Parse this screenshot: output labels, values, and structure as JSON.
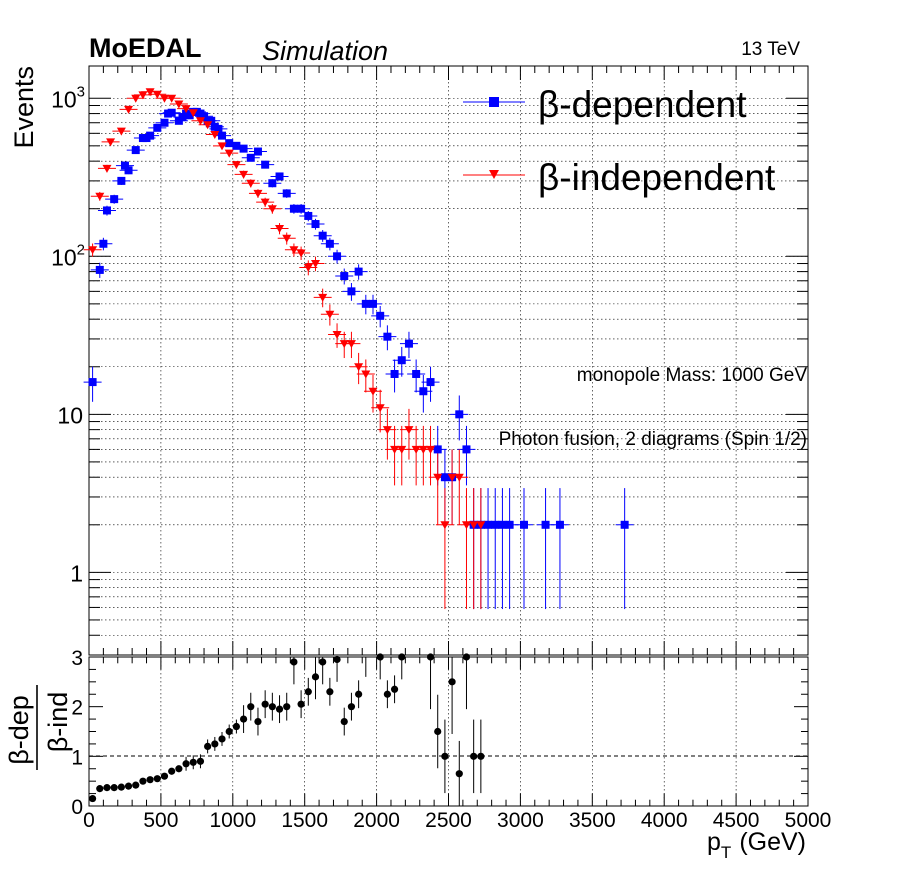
{
  "header": {
    "experiment": "MoEDAL",
    "status": "Simulation",
    "energy": "13 TeV"
  },
  "annotations": {
    "mass": "monopole Mass: 1000 GeV",
    "process": "Photon fusion, 2 diagrams (Spin 1/2)"
  },
  "colors": {
    "dependent": "#0000ff",
    "independent": "#ff0000",
    "ratio": "#000000"
  },
  "chart_data": [
    {
      "type": "scatter",
      "scale": "log",
      "ylabel": "Events",
      "xlim": [
        0,
        5000
      ],
      "ylim": [
        0.3,
        1600
      ],
      "grid": true,
      "legend_position": "top-right",
      "y_tick_labels": [
        {
          "value": 1,
          "label": "1"
        },
        {
          "value": 10,
          "label": "10"
        },
        {
          "value": 100,
          "label": "10",
          "exp": "2"
        },
        {
          "value": 1000,
          "label": "10",
          "exp": "3"
        }
      ],
      "series": [
        {
          "name": "β-dependent",
          "marker": "square",
          "color": "#0000ff",
          "points": [
            [
              25,
              16
            ],
            [
              75,
              82
            ],
            [
              100,
              120
            ],
            [
              125,
              195
            ],
            [
              175,
              230
            ],
            [
              225,
              300
            ],
            [
              250,
              375
            ],
            [
              275,
              350
            ],
            [
              325,
              470
            ],
            [
              375,
              560
            ],
            [
              400,
              560
            ],
            [
              425,
              580
            ],
            [
              475,
              650
            ],
            [
              525,
              700
            ],
            [
              550,
              800
            ],
            [
              575,
              810
            ],
            [
              625,
              720
            ],
            [
              650,
              760
            ],
            [
              675,
              800
            ],
            [
              700,
              780
            ],
            [
              725,
              820
            ],
            [
              750,
              820
            ],
            [
              775,
              800
            ],
            [
              800,
              770
            ],
            [
              825,
              720
            ],
            [
              850,
              720
            ],
            [
              875,
              660
            ],
            [
              900,
              640
            ],
            [
              925,
              580
            ],
            [
              975,
              520
            ],
            [
              1025,
              500
            ],
            [
              1075,
              480
            ],
            [
              1125,
              420
            ],
            [
              1175,
              460
            ],
            [
              1225,
              380
            ],
            [
              1275,
              290
            ],
            [
              1325,
              320
            ],
            [
              1375,
              250
            ],
            [
              1425,
              200
            ],
            [
              1475,
              200
            ],
            [
              1525,
              180
            ],
            [
              1575,
              160
            ],
            [
              1625,
              135
            ],
            [
              1675,
              120
            ],
            [
              1725,
              100
            ],
            [
              1775,
              75
            ],
            [
              1825,
              60
            ],
            [
              1875,
              80
            ],
            [
              1925,
              50
            ],
            [
              1975,
              50
            ],
            [
              2025,
              42
            ],
            [
              2075,
              31
            ],
            [
              2125,
              18
            ],
            [
              2175,
              22
            ],
            [
              2225,
              28
            ],
            [
              2275,
              18
            ],
            [
              2325,
              14
            ],
            [
              2375,
              16
            ],
            [
              2425,
              6
            ],
            [
              2475,
              4
            ],
            [
              2525,
              4
            ],
            [
              2575,
              10
            ],
            [
              2625,
              6
            ],
            [
              2675,
              2
            ],
            [
              2725,
              2
            ],
            [
              2775,
              2
            ],
            [
              2825,
              2
            ],
            [
              2875,
              2
            ],
            [
              2925,
              2
            ],
            [
              3025,
              2
            ],
            [
              3175,
              2
            ],
            [
              3275,
              2
            ],
            [
              3725,
              2
            ]
          ]
        },
        {
          "name": "β-independent",
          "marker": "triangle-down",
          "color": "#ff0000",
          "points": [
            [
              25,
              110
            ],
            [
              75,
              240
            ],
            [
              125,
              360
            ],
            [
              150,
              530
            ],
            [
              225,
              620
            ],
            [
              275,
              850
            ],
            [
              325,
              1000
            ],
            [
              375,
              1050
            ],
            [
              425,
              1100
            ],
            [
              475,
              1060
            ],
            [
              525,
              1000
            ],
            [
              575,
              1000
            ],
            [
              625,
              920
            ],
            [
              675,
              860
            ],
            [
              725,
              810
            ],
            [
              775,
              720
            ],
            [
              825,
              680
            ],
            [
              875,
              590
            ],
            [
              925,
              500
            ],
            [
              975,
              450
            ],
            [
              1025,
              380
            ],
            [
              1075,
              330
            ],
            [
              1125,
              290
            ],
            [
              1175,
              250
            ],
            [
              1225,
              220
            ],
            [
              1275,
              200
            ],
            [
              1325,
              150
            ],
            [
              1375,
              130
            ],
            [
              1425,
              110
            ],
            [
              1475,
              105
            ],
            [
              1525,
              85
            ],
            [
              1575,
              90
            ],
            [
              1625,
              55
            ],
            [
              1675,
              43
            ],
            [
              1725,
              32
            ],
            [
              1775,
              28
            ],
            [
              1825,
              28
            ],
            [
              1875,
              20
            ],
            [
              1925,
              18
            ],
            [
              1975,
              14
            ],
            [
              2025,
              11
            ],
            [
              2075,
              8
            ],
            [
              2125,
              6
            ],
            [
              2175,
              6
            ],
            [
              2225,
              8
            ],
            [
              2275,
              6
            ],
            [
              2325,
              6
            ],
            [
              2375,
              6
            ],
            [
              2425,
              4
            ],
            [
              2475,
              2
            ],
            [
              2525,
              4
            ],
            [
              2575,
              4
            ],
            [
              2625,
              2
            ],
            [
              2675,
              2
            ],
            [
              2725,
              2
            ]
          ]
        }
      ]
    },
    {
      "type": "scatter",
      "ylabel_top": "β-dep",
      "ylabel_bottom": "β-ind",
      "xlabel": "p",
      "xlabel_sub": "T",
      "xlabel_unit": "(GeV)",
      "xlim": [
        0,
        5000
      ],
      "ylim": [
        0,
        3
      ],
      "yticks": [
        0,
        1,
        2,
        3
      ],
      "xticks": [
        0,
        500,
        1000,
        1500,
        2000,
        2500,
        3000,
        3500,
        4000,
        4500,
        5000
      ],
      "reference_line": 1,
      "series": [
        {
          "name": "ratio",
          "marker": "circle",
          "color": "#000000",
          "points": [
            [
              25,
              0.15
            ],
            [
              75,
              0.35
            ],
            [
              125,
              0.37
            ],
            [
              175,
              0.37
            ],
            [
              225,
              0.38
            ],
            [
              275,
              0.4
            ],
            [
              325,
              0.42
            ],
            [
              375,
              0.5
            ],
            [
              425,
              0.53
            ],
            [
              475,
              0.55
            ],
            [
              525,
              0.6
            ],
            [
              575,
              0.7
            ],
            [
              625,
              0.75
            ],
            [
              675,
              0.85
            ],
            [
              725,
              0.88
            ],
            [
              775,
              0.9
            ],
            [
              825,
              1.2
            ],
            [
              875,
              1.25
            ],
            [
              925,
              1.35
            ],
            [
              975,
              1.5
            ],
            [
              1025,
              1.6
            ],
            [
              1075,
              1.75
            ],
            [
              1125,
              2.0
            ],
            [
              1175,
              1.7
            ],
            [
              1225,
              2.05
            ],
            [
              1275,
              2.0
            ],
            [
              1325,
              1.95
            ],
            [
              1375,
              2.0
            ],
            [
              1425,
              2.9
            ],
            [
              1475,
              2.05
            ],
            [
              1525,
              2.3
            ],
            [
              1575,
              2.6
            ],
            [
              1625,
              2.9
            ],
            [
              1675,
              2.3
            ],
            [
              1725,
              2.95
            ],
            [
              1775,
              1.7
            ],
            [
              1825,
              2.0
            ],
            [
              1875,
              2.25
            ],
            [
              1925,
              3.05
            ],
            [
              2025,
              3.0
            ],
            [
              2075,
              2.25
            ],
            [
              2125,
              2.35
            ],
            [
              2175,
              3.0
            ],
            [
              2375,
              3.0
            ],
            [
              2425,
              1.5
            ],
            [
              2475,
              1.0
            ],
            [
              2525,
              2.5
            ],
            [
              2575,
              0.65
            ],
            [
              2625,
              3.0
            ],
            [
              2675,
              1.0
            ],
            [
              2725,
              1.0
            ]
          ]
        }
      ]
    }
  ]
}
